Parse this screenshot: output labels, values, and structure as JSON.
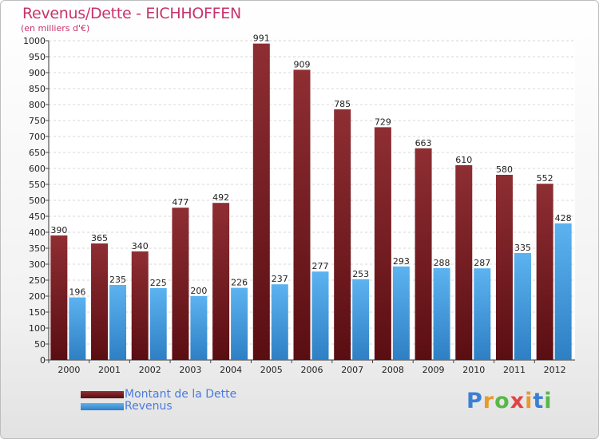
{
  "chart_data": {
    "type": "bar",
    "title": "Revenus/Dette - EICHHOFFEN",
    "subtitle": "(en milliers d'€)",
    "categories": [
      "2000",
      "2001",
      "2002",
      "2003",
      "2004",
      "2005",
      "2006",
      "2007",
      "2008",
      "2009",
      "2010",
      "2011",
      "2012"
    ],
    "series": [
      {
        "name": "Montant de la Dette",
        "color": "#7a1c22",
        "values": [
          390,
          365,
          340,
          477,
          492,
          991,
          909,
          785,
          729,
          663,
          610,
          580,
          552
        ]
      },
      {
        "name": "Revenus",
        "color": "#4aa3e6",
        "values": [
          196,
          235,
          225,
          200,
          226,
          237,
          277,
          253,
          293,
          288,
          287,
          335,
          428
        ]
      }
    ],
    "ylim": [
      0,
      1000
    ],
    "ytick_step": 50,
    "grid": true,
    "legend_position": "bottom-left"
  },
  "logo": {
    "letters": [
      "P",
      "r",
      "o",
      "x",
      "i",
      "t",
      "i"
    ],
    "colors": [
      "#3b7fd4",
      "#e89a2a",
      "#58b847",
      "#e04545",
      "#e89a2a",
      "#3b7fd4",
      "#58b847"
    ]
  }
}
